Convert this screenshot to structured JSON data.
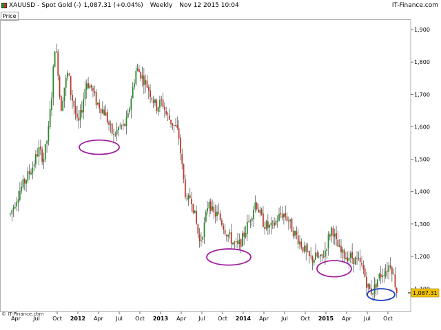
{
  "header": {
    "symbol": "XAUUSD",
    "separator": "-",
    "name": "Spot Gold (-)",
    "last": "1,087.31",
    "change": "(+0.04%)",
    "period": "Weekly",
    "datetime": "Nov 12 2015 10:04",
    "brand": "IT-Finance.com",
    "colors": {
      "up": "#2a8a2a",
      "down": "#c0392b",
      "circle_purple": "#a020a0",
      "circle_blue": "#1f3fbf",
      "price_tag": "#f2c200"
    }
  },
  "price_label": "Price",
  "footer_brand": "© IT-Finance.com",
  "chart_data": {
    "type": "candlestick",
    "interval": "weekly",
    "ylim": [
      1030,
      1930
    ],
    "y_ticks": [
      "1,100",
      "1,200",
      "1,300",
      "1,400",
      "1,500",
      "1,600",
      "1,700",
      "1,800",
      "1,900"
    ],
    "y_tick_values": [
      1100,
      1200,
      1300,
      1400,
      1500,
      1600,
      1700,
      1800,
      1900
    ],
    "x_ticks": [
      {
        "label": "Apr",
        "month": 0
      },
      {
        "label": "Jul",
        "month": 3
      },
      {
        "label": "Oct",
        "month": 6
      },
      {
        "label": "2012",
        "month": 9,
        "bold": true
      },
      {
        "label": "Apr",
        "month": 12
      },
      {
        "label": "Jul",
        "month": 15
      },
      {
        "label": "Oct",
        "month": 18
      },
      {
        "label": "2013",
        "month": 21,
        "bold": true
      },
      {
        "label": "Apr",
        "month": 24
      },
      {
        "label": "Jul",
        "month": 27
      },
      {
        "label": "Oct",
        "month": 30
      },
      {
        "label": "2014",
        "month": 33,
        "bold": true
      },
      {
        "label": "Apr",
        "month": 36
      },
      {
        "label": "Jul",
        "month": 39
      },
      {
        "label": "Oct",
        "month": 42
      },
      {
        "label": "2015",
        "month": 45,
        "bold": true
      },
      {
        "label": "Apr",
        "month": 48
      },
      {
        "label": "Jul",
        "month": 51
      },
      {
        "label": "Oct",
        "month": 54
      }
    ],
    "last_price": 1087.31,
    "last_price_label": "1,087.31",
    "price_path": [
      [
        -0.8,
        1330
      ],
      [
        0.5,
        1400
      ],
      [
        1.5,
        1440
      ],
      [
        2.5,
        1480
      ],
      [
        3.3,
        1530
      ],
      [
        4.0,
        1500
      ],
      [
        4.7,
        1580
      ],
      [
        5.2,
        1700
      ],
      [
        5.7,
        1860
      ],
      [
        6.1,
        1780
      ],
      [
        6.5,
        1650
      ],
      [
        7.0,
        1720
      ],
      [
        7.6,
        1770
      ],
      [
        8.0,
        1700
      ],
      [
        8.5,
        1660
      ],
      [
        9.0,
        1600
      ],
      [
        9.6,
        1660
      ],
      [
        10.2,
        1740
      ],
      [
        11.0,
        1720
      ],
      [
        11.6,
        1680
      ],
      [
        12.3,
        1660
      ],
      [
        13.0,
        1640
      ],
      [
        13.6,
        1600
      ],
      [
        14.2,
        1570
      ],
      [
        15.0,
        1600
      ],
      [
        15.6,
        1600
      ],
      [
        16.2,
        1620
      ],
      [
        16.8,
        1700
      ],
      [
        17.5,
        1780
      ],
      [
        18.2,
        1760
      ],
      [
        19.0,
        1730
      ],
      [
        19.6,
        1700
      ],
      [
        20.4,
        1660
      ],
      [
        21.2,
        1680
      ],
      [
        21.8,
        1640
      ],
      [
        22.4,
        1620
      ],
      [
        23.1,
        1600
      ],
      [
        23.6,
        1580
      ],
      [
        24.2,
        1460
      ],
      [
        24.8,
        1360
      ],
      [
        25.4,
        1390
      ],
      [
        26.1,
        1310
      ],
      [
        26.7,
        1240
      ],
      [
        27.4,
        1300
      ],
      [
        28.0,
        1380
      ],
      [
        28.6,
        1330
      ],
      [
        29.2,
        1330
      ],
      [
        29.8,
        1310
      ],
      [
        30.4,
        1280
      ],
      [
        31.0,
        1260
      ],
      [
        31.6,
        1240
      ],
      [
        32.2,
        1230
      ],
      [
        32.8,
        1250
      ],
      [
        33.5,
        1290
      ],
      [
        34.2,
        1330
      ],
      [
        34.8,
        1370
      ],
      [
        35.4,
        1330
      ],
      [
        36.0,
        1300
      ],
      [
        36.6,
        1290
      ],
      [
        37.2,
        1290
      ],
      [
        37.8,
        1310
      ],
      [
        38.4,
        1330
      ],
      [
        39.0,
        1330
      ],
      [
        39.6,
        1310
      ],
      [
        40.2,
        1280
      ],
      [
        40.8,
        1260
      ],
      [
        41.6,
        1230
      ],
      [
        42.3,
        1200
      ],
      [
        43.0,
        1190
      ],
      [
        43.6,
        1200
      ],
      [
        44.2,
        1190
      ],
      [
        44.8,
        1210
      ],
      [
        45.4,
        1260
      ],
      [
        45.9,
        1290
      ],
      [
        46.5,
        1240
      ],
      [
        47.2,
        1210
      ],
      [
        47.9,
        1200
      ],
      [
        48.5,
        1200
      ],
      [
        49.2,
        1190
      ],
      [
        49.8,
        1180
      ],
      [
        50.4,
        1160
      ],
      [
        51.0,
        1110
      ],
      [
        51.5,
        1090
      ],
      [
        52.0,
        1100
      ],
      [
        52.5,
        1130
      ],
      [
        53.2,
        1150
      ],
      [
        53.8,
        1160
      ],
      [
        54.4,
        1180
      ],
      [
        54.8,
        1140
      ],
      [
        55.3,
        1090
      ]
    ],
    "annotations": [
      {
        "shape": "ellipse",
        "color": "purple",
        "month": 12.1,
        "price": 1537,
        "rx_months": 2.9,
        "ry_price": 22
      },
      {
        "shape": "ellipse",
        "color": "purple",
        "month": 30.9,
        "price": 1198,
        "rx_months": 3.2,
        "ry_price": 25
      },
      {
        "shape": "ellipse",
        "color": "purple",
        "month": 46.2,
        "price": 1162,
        "rx_months": 2.5,
        "ry_price": 25
      },
      {
        "shape": "ellipse",
        "color": "blue",
        "month": 53.0,
        "price": 1082,
        "rx_months": 2.0,
        "ry_price": 18
      }
    ]
  }
}
